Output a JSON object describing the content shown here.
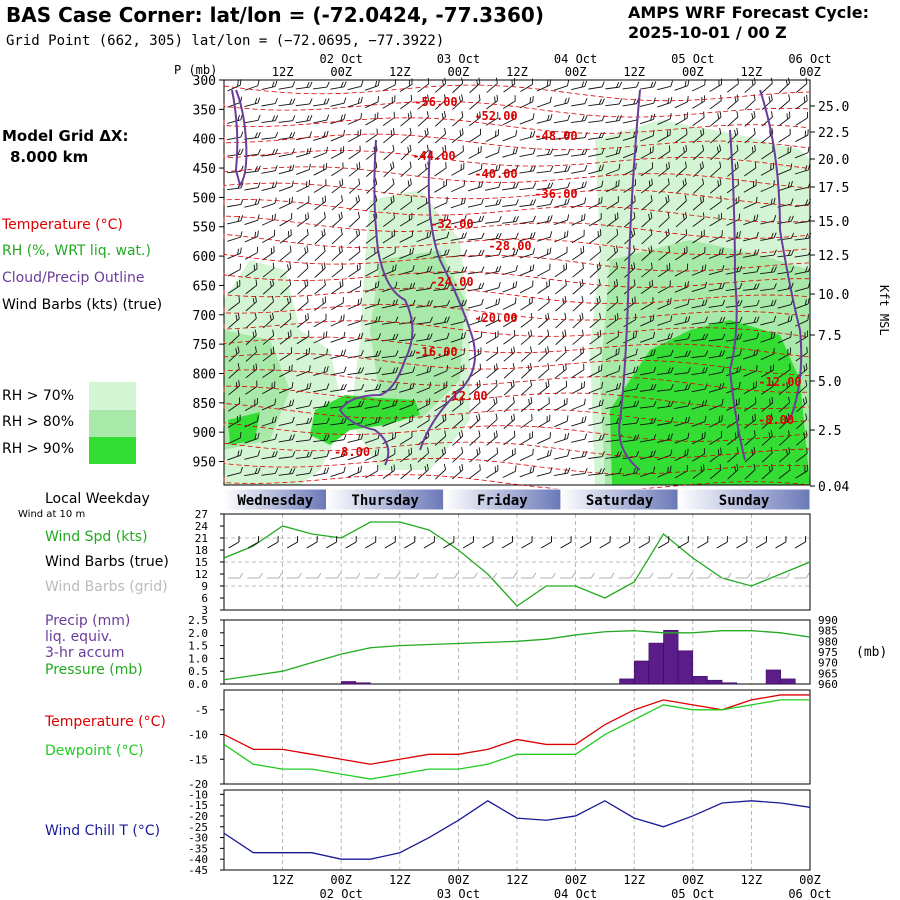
{
  "header": {
    "title": "BAS Case Corner:  lat/lon = (-72.0424, -77.3360)",
    "grid_point": "Grid Point (662, 305) lat/lon = (−72.0695, −77.3922)",
    "forecast_label": "AMPS WRF Forecast Cycle:",
    "forecast_cycle": "2025-10-01 / 00  Z"
  },
  "legend": {
    "model_grid_label": "Model Grid ΔX:",
    "model_grid_value": "8.000 km",
    "temperature": "Temperature (°C)",
    "rh": "RH (%, WRT liq. wat.)",
    "cloud": "Cloud/Precip Outline",
    "wind": "Wind Barbs (kts) (true)",
    "rh_levels": [
      "RH > 70%",
      "RH > 80%",
      "RH > 90%"
    ]
  },
  "colors": {
    "temperature": "#dd0000",
    "rh_text": "#22aa22",
    "cloud": "#6a3d9a",
    "rh70": "#d4f5d4",
    "rh80": "#a8e8a8",
    "rh90": "#33dd33",
    "dewpoint": "#22cc22",
    "windchill": "#1a1a99",
    "precip": "#5b1d8a"
  },
  "chart_data": [
    {
      "type": "heatmap",
      "name": "cross-section",
      "y_axis_label": "P (mb)",
      "pressure_ticks": [
        300,
        350,
        400,
        450,
        500,
        550,
        600,
        650,
        700,
        750,
        800,
        850,
        900,
        950
      ],
      "ylim": [
        990,
        300
      ],
      "kft_ticks": [
        "25.0",
        "22.5",
        "20.0",
        "17.5",
        "15.0",
        "12.5",
        "10.0",
        "7.5",
        "5.0",
        "2.5",
        "0.04"
      ],
      "kft_label": "Kft MSL",
      "hour_ticks": [
        "12Z",
        "00Z",
        "12Z",
        "00Z",
        "12Z",
        "00Z",
        "12Z",
        "00Z",
        "12Z",
        "00Z"
      ],
      "date_ticks": [
        "02 Oct",
        "03 Oct",
        "04 Oct",
        "05 Oct",
        "06 Oct"
      ],
      "bottom_dates": [
        "02 Oct",
        "03 Oct",
        "04 Oct",
        "05 Oct",
        "06 Oct"
      ],
      "temperature_labels": [
        "-56.00",
        "-52.00",
        "-48.00",
        "-44.00",
        "-40.00",
        "-36.00",
        "-32.00",
        "-28.00",
        "-24.00",
        "-20.00",
        "-16.00",
        "-12.00",
        "-8.00",
        "-12.00",
        "-8.00"
      ]
    },
    {
      "type": "line",
      "name": "wind",
      "header": "Local Weekday",
      "subheader": "Wind at 10 m",
      "weekdays": [
        "Wednesday",
        "Thursday",
        "Friday",
        "Saturday",
        "Sunday"
      ],
      "labels": [
        "Wind Spd (kts)",
        "Wind Barbs (true)",
        "Wind Barbs (grid)"
      ],
      "yticks": [
        27,
        24,
        21,
        18,
        15,
        12,
        9,
        6,
        3
      ],
      "ylim": [
        3,
        27
      ],
      "x_hours": [
        0,
        6,
        12,
        18,
        24,
        30,
        36,
        42,
        48,
        54,
        60,
        66,
        72,
        78,
        84,
        90,
        96,
        102,
        108,
        114,
        120
      ],
      "wind_speed": [
        16,
        19,
        24,
        22,
        21,
        25,
        25,
        23,
        18,
        12,
        4,
        9,
        9,
        6,
        10,
        22,
        16,
        11,
        9,
        12,
        15
      ]
    },
    {
      "type": "bar",
      "name": "precip-pressure",
      "labels": [
        "Precip (mm)",
        "liq. equiv.",
        "3-hr accum",
        "Pressure (mb)"
      ],
      "y_ticks": [
        "2.5",
        "2.0",
        "1.5",
        "1.0",
        "0.5",
        "0.0"
      ],
      "ylim": [
        0,
        2.5
      ],
      "y2_ticks": [
        "990",
        "985",
        "980",
        "975",
        "970",
        "965",
        "960"
      ],
      "y2_lim": [
        960,
        990
      ],
      "y2_unit": "(mb)",
      "precip_hours": [
        27,
        30,
        84,
        87,
        90,
        93,
        96,
        99,
        102,
        105,
        114,
        117
      ],
      "precip_values": [
        0.1,
        0.05,
        0.2,
        0.9,
        1.6,
        2.1,
        1.3,
        0.3,
        0.15,
        0.05,
        0.55,
        0.2
      ],
      "pressure": [
        962,
        964,
        966,
        970,
        974,
        977,
        978,
        978.5,
        979,
        979.5,
        980,
        981,
        983,
        984.5,
        985,
        984,
        984,
        985,
        985,
        984,
        982
      ]
    },
    {
      "type": "line",
      "name": "temperature",
      "labels": [
        "Temperature (°C)",
        "Dewpoint (°C)"
      ],
      "yticks": [
        -5,
        -10,
        -15,
        -20
      ],
      "ylim": [
        -20,
        -1
      ],
      "temperature": [
        -10,
        -13,
        -13,
        -14,
        -15,
        -16,
        -15,
        -14,
        -14,
        -13,
        -11,
        -12,
        -12,
        -8,
        -5,
        -3,
        -4,
        -5,
        -3,
        -2,
        -2
      ],
      "dewpoint": [
        -12,
        -16,
        -17,
        -17,
        -18,
        -19,
        -18,
        -17,
        -17,
        -16,
        -14,
        -14,
        -14,
        -10,
        -7,
        -4,
        -5,
        -5,
        -4,
        -3,
        -3
      ]
    },
    {
      "type": "line",
      "name": "wind-chill",
      "labels": [
        "Wind Chill T (°C)"
      ],
      "yticks": [
        -10,
        -15,
        -20,
        -25,
        -30,
        -35,
        -40,
        -45
      ],
      "ylim": [
        -45,
        -8
      ],
      "wind_chill": [
        -28,
        -37,
        -37,
        -37,
        -40,
        -40,
        -37,
        -30,
        -22,
        -13,
        -21,
        -22,
        -20,
        -13,
        -21,
        -25,
        -20,
        -14,
        -13,
        -14,
        -16
      ]
    }
  ]
}
